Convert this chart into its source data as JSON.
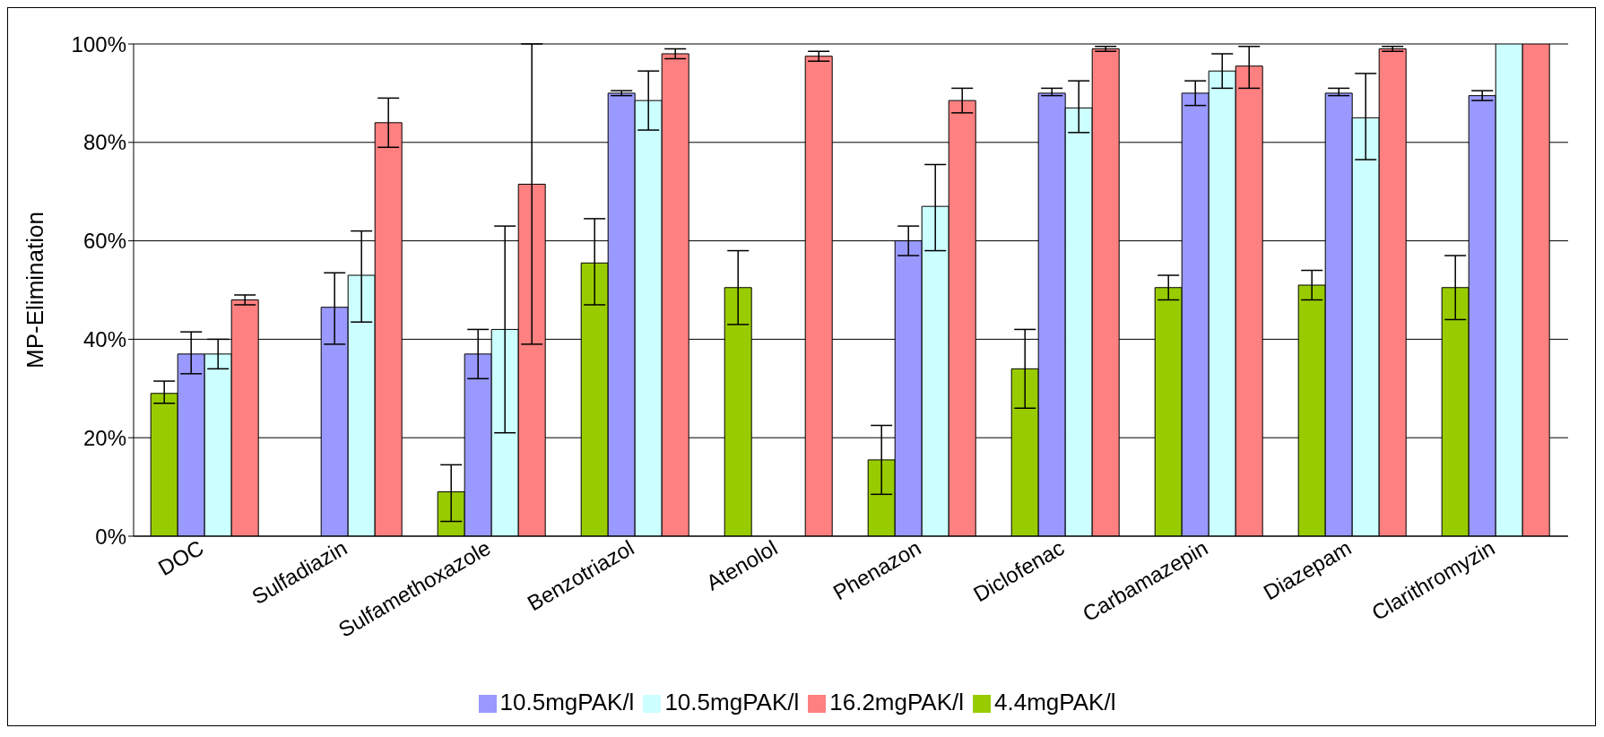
{
  "chart_data": {
    "type": "bar",
    "ylabel": "MP-Elimination",
    "categories": [
      "DOC",
      "Sulfadiazin",
      "Sulfamethoxazole",
      "Benzotriazol",
      "Atenolol",
      "Phenazon",
      "Diclofenac",
      "Carbamazepin",
      "Diazepam",
      "Clarithromyzin"
    ],
    "series": [
      {
        "name": "4.4mgPAK/l",
        "color": "#99cc00",
        "values": [
          29,
          null,
          9,
          55.5,
          50.5,
          15.5,
          34,
          50.5,
          51,
          50.5
        ],
        "errors": [
          [
            27,
            31.5
          ],
          null,
          [
            3,
            14.5
          ],
          [
            47,
            64.5
          ],
          [
            43,
            58
          ],
          [
            8.5,
            22.5
          ],
          [
            26,
            42
          ],
          [
            48,
            53
          ],
          [
            48,
            54
          ],
          [
            44,
            57
          ]
        ]
      },
      {
        "name": "10.5mgPAK/l",
        "color": "#9999ff",
        "values": [
          37,
          46.5,
          37,
          90,
          0,
          60,
          90,
          90,
          90,
          89.5
        ],
        "errors": [
          [
            33,
            41.5
          ],
          [
            39,
            53.5
          ],
          [
            32,
            42
          ],
          [
            89.5,
            90.5
          ],
          null,
          [
            57,
            63
          ],
          [
            89.5,
            91
          ],
          [
            87.5,
            92.5
          ],
          [
            89.5,
            91
          ],
          [
            88.5,
            90.5
          ]
        ]
      },
      {
        "name": "10.5mgPAK/l",
        "color": "#ccffff",
        "values": [
          37,
          53,
          42,
          88.5,
          0,
          67,
          87,
          94.5,
          85,
          100
        ],
        "errors": [
          [
            34,
            40
          ],
          [
            43.5,
            62
          ],
          [
            21,
            63
          ],
          [
            82.5,
            94.5
          ],
          null,
          [
            58,
            75.5
          ],
          [
            82,
            92.5
          ],
          [
            91,
            98
          ],
          [
            76.5,
            94
          ],
          null
        ]
      },
      {
        "name": "16.2mgPAK/l",
        "color": "#ff8080",
        "values": [
          48,
          84,
          71.5,
          98,
          97.5,
          88.5,
          99,
          95.5,
          99,
          100
        ],
        "errors": [
          [
            47,
            49
          ],
          [
            79,
            89
          ],
          [
            39,
            100
          ],
          [
            97,
            99
          ],
          [
            96.5,
            98.5
          ],
          [
            86,
            91
          ],
          [
            98.5,
            99.5
          ],
          [
            91,
            99.5
          ],
          [
            98.5,
            99.5
          ],
          null
        ]
      }
    ],
    "ylim": [
      0,
      100
    ],
    "yticks": [
      {
        "value": 0,
        "label": "0%"
      },
      {
        "value": 20,
        "label": "20%"
      },
      {
        "value": 40,
        "label": "40%"
      },
      {
        "value": 60,
        "label": "60%"
      },
      {
        "value": 80,
        "label": "80%"
      },
      {
        "value": 100,
        "label": "100%"
      }
    ],
    "grid": "y",
    "legend": "bottom"
  }
}
